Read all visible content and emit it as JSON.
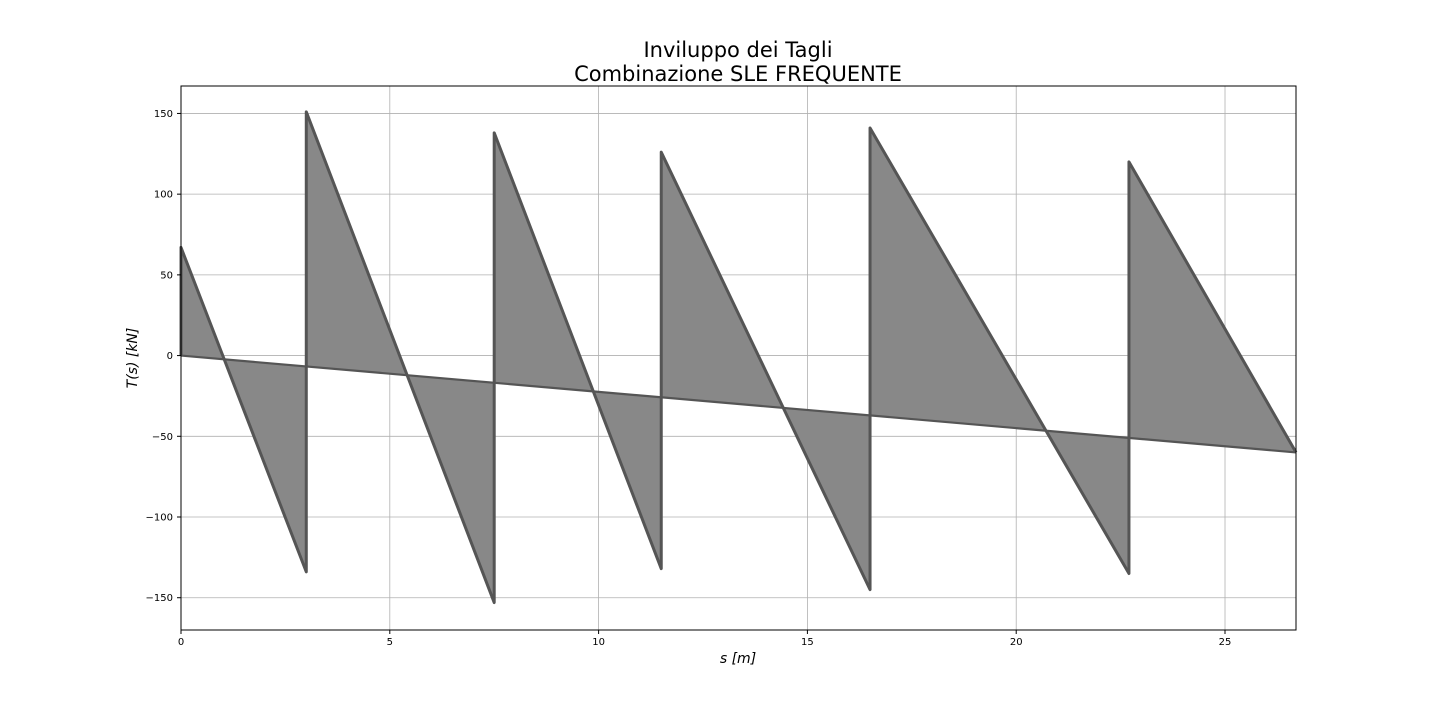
{
  "chart_data": {
    "type": "area",
    "title": [
      "Inviluppo dei Tagli",
      "Combinazione SLE FREQUENTE"
    ],
    "xlabel": "s [m]",
    "ylabel": "T(s) [kN]",
    "xlim": [
      0,
      26.7
    ],
    "ylim": [
      -170,
      167
    ],
    "xticks": [
      0,
      5,
      10,
      15,
      20,
      25
    ],
    "yticks": [
      -150,
      -100,
      -50,
      0,
      50,
      100,
      150
    ],
    "ytick_labels": [
      "−150",
      "−100",
      "−50",
      "0",
      "50",
      "100",
      "150"
    ],
    "grid": true,
    "fill_color": "#888888",
    "line_color": "#555555",
    "series": [
      {
        "values": [
          {
            "x": 0,
            "y": 67
          },
          {
            "x": 3.0,
            "y": -134
          },
          {
            "x": 3.0,
            "y": 151
          },
          {
            "x": 7.5,
            "y": -153
          },
          {
            "x": 7.5,
            "y": 138
          },
          {
            "x": 11.5,
            "y": -132
          },
          {
            "x": 11.5,
            "y": 126
          },
          {
            "x": 16.5,
            "y": -145
          },
          {
            "x": 16.5,
            "y": 141
          },
          {
            "x": 22.7,
            "y": -135
          },
          {
            "x": 22.7,
            "y": 120
          },
          {
            "x": 26.7,
            "y": -60
          }
        ]
      },
      {
        "values": [
          {
            "x": 0,
            "y": 0
          },
          {
            "x": 26.7,
            "y": -60
          }
        ]
      }
    ]
  }
}
